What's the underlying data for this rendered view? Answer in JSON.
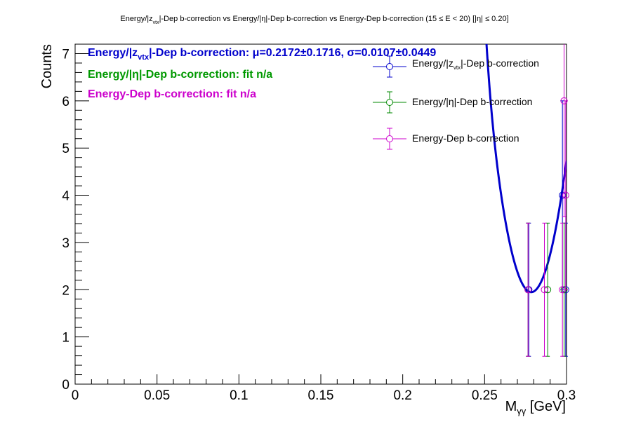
{
  "chart_data": {
    "type": "scatter",
    "title": "Energy/|z_vtx|-Dep b-correction vs Energy/|η|-Dep b-correction vs Energy-Dep b-correction   (15 ≤ E < 20)   [|η| ≤ 0.20]",
    "title_parts": {
      "t1": "Energy/|z",
      "t1_sub": "vtx",
      "t2": "|-Dep b-correction vs Energy/|η|-Dep b-correction vs Energy-Dep b-correction   (15 ≤ E < 20)   [|η| ≤ 0.20]"
    },
    "xlabel": "M",
    "xlabel_sub": "γγ",
    "xlabel_unit": " [GeV]",
    "ylabel": "Counts",
    "xlim": [
      0,
      0.3
    ],
    "ylim": [
      0,
      7.2
    ],
    "xticks": [
      0,
      0.05,
      0.1,
      0.15,
      0.2,
      0.25,
      0.3
    ],
    "xtick_labels": [
      "0",
      "0.05",
      "0.1",
      "0.15",
      "0.2",
      "0.25",
      "0.3"
    ],
    "yticks": [
      0,
      1,
      2,
      3,
      4,
      5,
      6,
      7
    ],
    "ytick_labels": [
      "0",
      "1",
      "2",
      "3",
      "4",
      "5",
      "6",
      "7"
    ],
    "grid": false,
    "legend_position": "top-right",
    "series": [
      {
        "name": "Energy/|z_vtx|-Dep b-correction",
        "name_parts": {
          "a": "Energy/|z",
          "sub": "vtx",
          "b": "|-Dep b-correction"
        },
        "color": "#0000cc",
        "points": [
          {
            "x": 0.277,
            "y": 2,
            "err": 1.41
          },
          {
            "x": 0.2975,
            "y": 4,
            "err": 2.0
          },
          {
            "x": 0.2995,
            "y": 2,
            "err": 1.41
          }
        ]
      },
      {
        "name": "Energy/|η|-Dep b-correction",
        "color": "#008800",
        "points": [
          {
            "x": 0.2765,
            "y": 2,
            "err": 1.41
          },
          {
            "x": 0.2885,
            "y": 2,
            "err": 1.41
          },
          {
            "x": 0.2985,
            "y": 2,
            "err": 1.41
          }
        ]
      },
      {
        "name": "Energy-Dep b-correction",
        "color": "#cc00cc",
        "points": [
          {
            "x": 0.2765,
            "y": 2,
            "err": 1.41
          },
          {
            "x": 0.2865,
            "y": 2,
            "err": 1.41
          },
          {
            "x": 0.2975,
            "y": 2,
            "err": 1.41
          },
          {
            "x": 0.2985,
            "y": 6,
            "err": 2.45
          },
          {
            "x": 0.2995,
            "y": 4,
            "err": 2.0
          }
        ]
      }
    ],
    "fit": {
      "model": "gaussian_plus_quadratic",
      "color": "#0000cc",
      "mu": 0.2172,
      "sigma": 0.0107,
      "amplitude": 120,
      "background": {
        "a": 1.95,
        "b": 6.5,
        "c": 6000,
        "x0": 0.279
      },
      "range": [
        0.15,
        0.3
      ]
    },
    "annotations": [
      {
        "id": "fit1",
        "color": "#0000cc",
        "a": "Energy/|z",
        "sub": "vtx",
        "b": "|-Dep b-correction: μ=0.2172±0.1716, σ=0.0107±0.0449"
      },
      {
        "id": "fit2",
        "color": "#009900",
        "text": "Energy/|η|-Dep b-correction: fit n/a"
      },
      {
        "id": "fit3",
        "color": "#cc00cc",
        "text": "Energy-Dep b-correction: fit n/a"
      }
    ]
  }
}
